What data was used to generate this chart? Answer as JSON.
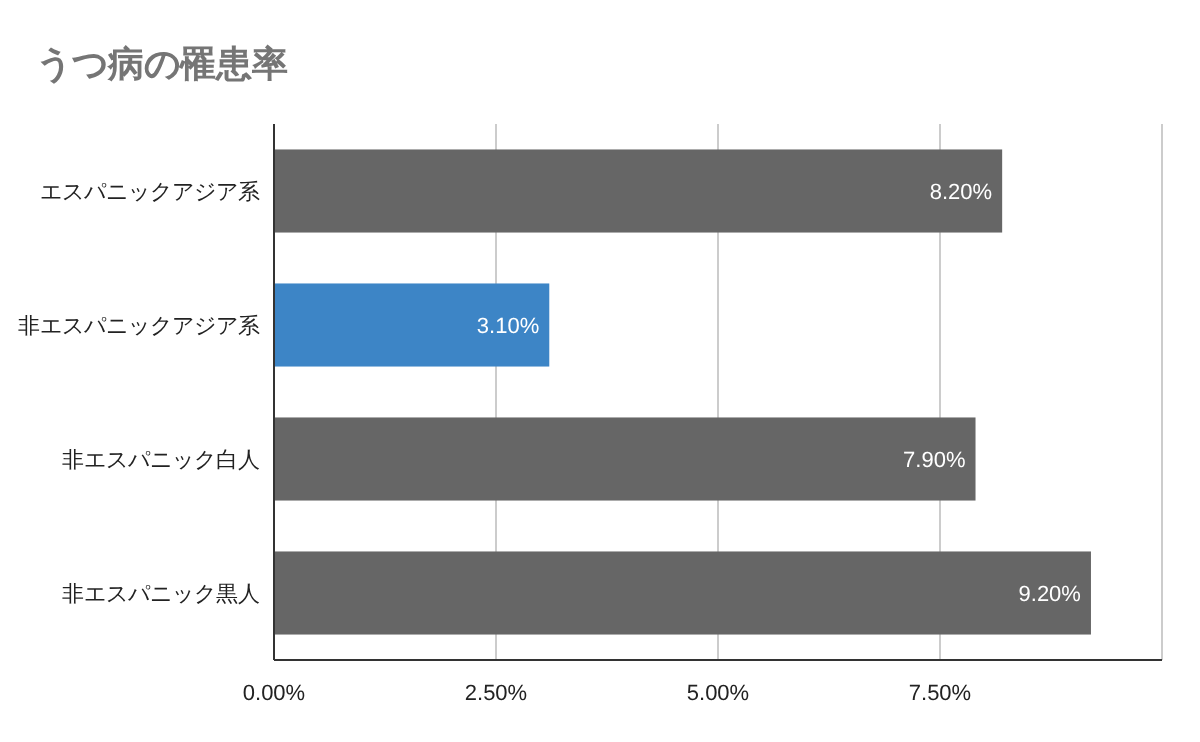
{
  "chart_data": {
    "type": "bar",
    "orientation": "horizontal",
    "title": "うつ病の罹患率",
    "categories": [
      "エスパニックアジア系",
      "非エスパニックアジア系",
      "非エスパニック白人",
      "非エスパニック黒人"
    ],
    "values": [
      8.2,
      3.1,
      7.9,
      9.2
    ],
    "colors": [
      "#666666",
      "#3d85c6",
      "#666666",
      "#666666"
    ],
    "value_labels": [
      "8.20%",
      "3.10%",
      "7.90%",
      "9.20%"
    ],
    "xlim": [
      0,
      10
    ],
    "xticks": [
      {
        "value": 0,
        "label": "0.00%"
      },
      {
        "value": 2.5,
        "label": "2.50%"
      },
      {
        "value": 5,
        "label": "5.00%"
      },
      {
        "value": 7.5,
        "label": "7.50%"
      },
      {
        "value": 10,
        "label": null
      }
    ],
    "grid": "x"
  }
}
